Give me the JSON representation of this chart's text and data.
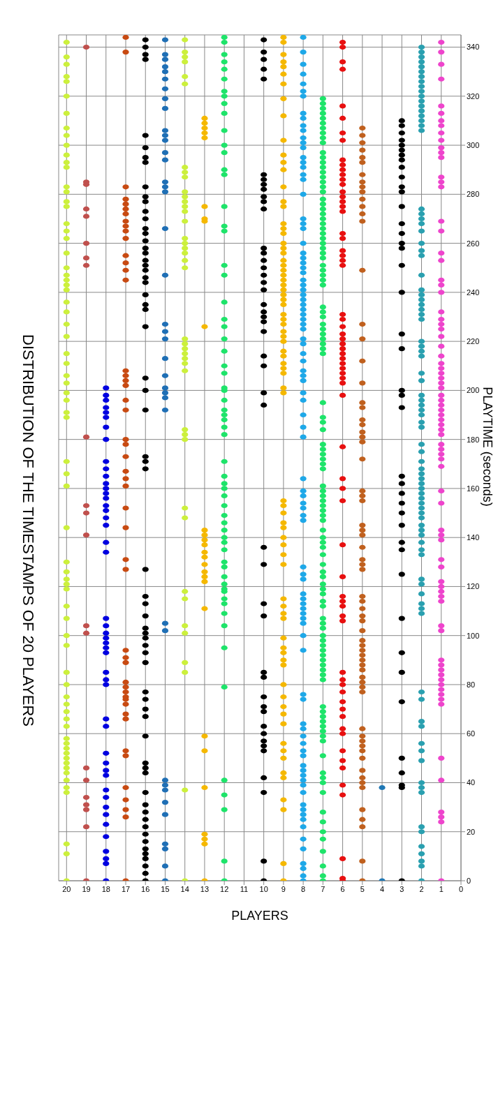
{
  "chart_data": {
    "type": "scatter",
    "title": "DISTRIBUTION OF THE TIMESTAMPS OF 20 PLAYERS",
    "xlabel": "PLAYERS",
    "ylabel": "PLAYTIME  (seconds)",
    "xlim": [
      20.4,
      0
    ],
    "ylim": [
      0,
      345
    ],
    "xticks": [
      0,
      1,
      2,
      3,
      4,
      5,
      6,
      7,
      8,
      9,
      10,
      11,
      12,
      13,
      14,
      15,
      16,
      17,
      18,
      19,
      20
    ],
    "yticks": [
      0,
      20,
      40,
      60,
      80,
      100,
      120,
      140,
      160,
      180,
      200,
      220,
      240,
      260,
      280,
      300,
      320,
      340
    ],
    "grid": true,
    "marker": "circle",
    "series": [
      {
        "color": "#ccf03c",
        "values": [
          0,
          11,
          15,
          36,
          38,
          41,
          44,
          46,
          48,
          50,
          52,
          54,
          56,
          58,
          63,
          66,
          69,
          72,
          75,
          80,
          85,
          96,
          100,
          107,
          112,
          119,
          121,
          123,
          126,
          130,
          144,
          161,
          166,
          171,
          189,
          191,
          196,
          199,
          203,
          206,
          211,
          215,
          222,
          227,
          232,
          236,
          241,
          243,
          245,
          247,
          250,
          256,
          262,
          265,
          268,
          275,
          277,
          281,
          283,
          291,
          293,
          296,
          300,
          304,
          307,
          313,
          320,
          326,
          328,
          333,
          336,
          342
        ],
        "x": [
          20,
          20,
          20,
          20,
          20,
          20,
          20,
          20,
          20,
          20,
          20,
          20,
          20,
          20,
          20,
          20,
          20,
          20,
          20,
          20,
          20,
          20,
          20,
          20,
          20,
          20,
          20,
          20,
          20,
          20,
          20,
          20,
          20,
          20,
          20,
          20,
          20,
          20,
          20,
          20,
          20,
          20,
          20,
          20,
          20,
          20,
          20,
          20,
          20,
          20,
          20,
          20,
          20,
          20,
          20,
          20,
          20,
          20,
          20,
          20,
          20,
          20,
          20,
          20,
          20,
          20,
          20,
          20,
          20,
          20,
          20,
          20
        ]
      },
      {
        "color": "#c0504d",
        "values": [
          0,
          22,
          29,
          31,
          34,
          41,
          46,
          101,
          104,
          141,
          150,
          153,
          181,
          251,
          254,
          260,
          271,
          274,
          284,
          285,
          340
        ],
        "x": [
          19,
          19,
          19,
          19,
          19,
          19,
          19,
          19,
          19,
          19,
          19,
          19,
          19,
          19,
          19,
          19,
          19,
          19,
          19,
          19,
          19
        ]
      },
      {
        "color": "#0000e0",
        "values": [
          0,
          7,
          9,
          12,
          18,
          23,
          27,
          30,
          34,
          37,
          43,
          45,
          48,
          52,
          63,
          66,
          80,
          82,
          85,
          93,
          95,
          97,
          99,
          101,
          104,
          107,
          134,
          138,
          145,
          148,
          151,
          153,
          156,
          158,
          160,
          162,
          165,
          168,
          171,
          180,
          185,
          189,
          191,
          193,
          196,
          198,
          201
        ],
        "x": [
          18,
          18,
          18,
          18,
          18,
          18,
          18,
          18,
          18,
          18,
          18,
          18,
          18,
          18,
          18,
          18,
          18,
          18,
          18,
          18,
          18,
          18,
          18,
          18,
          18,
          18,
          18,
          18,
          18,
          18,
          18,
          18,
          18,
          18,
          18,
          18,
          18,
          18,
          18,
          18,
          18,
          18,
          18,
          18,
          18,
          18,
          18
        ]
      },
      {
        "color": "#c84a12",
        "values": [
          0,
          26,
          29,
          33,
          38,
          51,
          53,
          66,
          68,
          72,
          74,
          75,
          77,
          79,
          81,
          89,
          91,
          94,
          127,
          131,
          144,
          152,
          161,
          164,
          167,
          173,
          178,
          180,
          192,
          196,
          202,
          204,
          206,
          208,
          245,
          249,
          252,
          255,
          262,
          265,
          267,
          269,
          272,
          274,
          276,
          278,
          283,
          338,
          344
        ],
        "x": [
          17,
          17,
          17,
          17,
          17,
          17,
          17,
          17,
          17,
          17,
          17,
          17,
          17,
          17,
          17,
          17,
          17,
          17,
          17,
          17,
          17,
          17,
          17,
          17,
          17,
          17,
          17,
          17,
          17,
          17,
          17,
          17,
          17,
          17,
          17,
          17,
          17,
          17,
          17,
          17,
          17,
          17,
          17,
          17,
          17,
          17,
          17,
          17,
          17
        ]
      },
      {
        "color": "#000000",
        "values": [
          0,
          3,
          6,
          9,
          11,
          13,
          16,
          19,
          22,
          25,
          28,
          31,
          36,
          44,
          46,
          48,
          59,
          67,
          70,
          74,
          77,
          89,
          93,
          96,
          99,
          101,
          103,
          108,
          113,
          116,
          127,
          168,
          171,
          173,
          192,
          200,
          205,
          226,
          233,
          235,
          239,
          244,
          246,
          249,
          251,
          253,
          256,
          258,
          261,
          264,
          266,
          270,
          273,
          277,
          279,
          283,
          293,
          295,
          299,
          304,
          335,
          337,
          340,
          343
        ],
        "x": [
          16,
          16,
          16,
          16,
          16,
          16,
          16,
          16,
          16,
          16,
          16,
          16,
          16,
          16,
          16,
          16,
          16,
          16,
          16,
          16,
          16,
          16,
          16,
          16,
          16,
          16,
          16,
          16,
          16,
          16,
          16,
          16,
          16,
          16,
          16,
          16,
          16,
          16,
          16,
          16,
          16,
          16,
          16,
          16,
          16,
          16,
          16,
          16,
          16,
          16,
          16,
          16,
          16,
          16,
          16,
          16,
          16,
          16,
          16,
          16,
          16,
          16,
          16,
          16
        ]
      },
      {
        "color": "#1f6fb5",
        "values": [
          0,
          6,
          13,
          15,
          27,
          32,
          37,
          39,
          41,
          102,
          105,
          192,
          197,
          199,
          201,
          206,
          213,
          221,
          224,
          227,
          247,
          266,
          281,
          283,
          285,
          294,
          297,
          302,
          304,
          306,
          315,
          319,
          323,
          327,
          330,
          332,
          335,
          337,
          343
        ],
        "x": [
          15,
          15,
          15,
          15,
          15,
          15,
          15,
          15,
          15,
          15,
          15,
          15,
          15,
          15,
          15,
          15,
          15,
          15,
          15,
          15,
          15,
          15,
          15,
          15,
          15,
          15,
          15,
          15,
          15,
          15,
          15,
          15,
          15,
          15,
          15,
          15,
          15,
          15,
          15
        ]
      },
      {
        "color": "#ccf03c",
        "values": [
          0,
          37,
          85,
          89,
          101,
          104,
          115,
          118,
          148,
          152,
          180,
          182,
          184,
          208,
          211,
          213,
          215,
          217,
          219,
          221,
          250,
          253,
          256,
          258,
          260,
          262,
          269,
          273,
          275,
          277,
          279,
          281,
          287,
          289,
          291,
          325,
          328,
          334,
          336,
          338,
          343
        ],
        "x": [
          14,
          14,
          14,
          14,
          14,
          14,
          14,
          14,
          14,
          14,
          14,
          14,
          14,
          14,
          14,
          14,
          14,
          14,
          14,
          14,
          14,
          14,
          14,
          14,
          14,
          14,
          14,
          14,
          14,
          14,
          14,
          14,
          14,
          14,
          14,
          14,
          14,
          14,
          14,
          14,
          14
        ]
      },
      {
        "color": "#f5b800",
        "values": [
          0,
          15,
          17,
          19,
          38,
          53,
          59,
          111,
          122,
          124,
          126,
          129,
          132,
          134,
          137,
          139,
          141,
          143,
          226,
          269,
          270,
          275,
          303,
          305,
          307,
          309,
          311
        ],
        "x": [
          13,
          13,
          13,
          13,
          13,
          13,
          13,
          13,
          13,
          13,
          13,
          13,
          13,
          13,
          13,
          13,
          13,
          13,
          13,
          13,
          13,
          13,
          13,
          13,
          13,
          13,
          13
        ]
      },
      {
        "color": "#1ee46a",
        "values": [
          0,
          8,
          29,
          35,
          41,
          79,
          95,
          104,
          109,
          113,
          115,
          118,
          119,
          121,
          124,
          128,
          130,
          135,
          138,
          140,
          143,
          146,
          149,
          153,
          157,
          160,
          162,
          165,
          171,
          182,
          185,
          188,
          190,
          192,
          196,
          200,
          201,
          207,
          210,
          216,
          221,
          226,
          229,
          236,
          247,
          251,
          265,
          267,
          275,
          288,
          290,
          297,
          300,
          306,
          313,
          317,
          320,
          322,
          327,
          331,
          334,
          337,
          342,
          344
        ],
        "x": [
          12,
          12,
          12,
          12,
          12,
          12,
          12,
          12,
          12,
          12,
          12,
          12,
          12,
          12,
          12,
          12,
          12,
          12,
          12,
          12,
          12,
          12,
          12,
          12,
          12,
          12,
          12,
          12,
          12,
          12,
          12,
          12,
          12,
          12,
          12,
          12,
          12,
          12,
          12,
          12,
          12,
          12,
          12,
          12,
          12,
          12,
          12,
          12,
          12,
          12,
          12,
          12,
          12,
          12,
          12,
          12,
          12,
          12,
          12,
          12,
          12,
          12,
          12,
          12
        ]
      },
      {
        "color": "#000000",
        "values": [
          0,
          8,
          36,
          42,
          53,
          55,
          57,
          60,
          63,
          69,
          71,
          75,
          83,
          85,
          108,
          113,
          129,
          136,
          194,
          199,
          210,
          214,
          224,
          228,
          230,
          232,
          235,
          241,
          244,
          247,
          250,
          253,
          256,
          258,
          274,
          277,
          279,
          282,
          284,
          286,
          288,
          327,
          331,
          335,
          338,
          343
        ],
        "x": [
          10,
          10,
          10,
          10,
          10,
          10,
          10,
          10,
          10,
          10,
          10,
          10,
          10,
          10,
          10,
          10,
          10,
          10,
          10,
          10,
          10,
          10,
          10,
          10,
          10,
          10,
          10,
          10,
          10,
          10,
          10,
          10,
          10,
          10,
          10,
          10,
          10,
          10,
          10,
          10,
          10,
          10,
          10,
          10,
          10,
          10
        ]
      },
      {
        "color": "#f5b800",
        "values": [
          0,
          7,
          29,
          33,
          42,
          44,
          50,
          53,
          56,
          64,
          68,
          71,
          75,
          80,
          88,
          90,
          93,
          95,
          99,
          107,
          109,
          112,
          115,
          129,
          133,
          137,
          140,
          144,
          146,
          150,
          153,
          155,
          199,
          201,
          207,
          209,
          211,
          214,
          216,
          220,
          222,
          224,
          227,
          229,
          231,
          235,
          237,
          239,
          241,
          243,
          245,
          247,
          249,
          251,
          253,
          256,
          258,
          260,
          264,
          266,
          268,
          275,
          277,
          283,
          290,
          293,
          296,
          302,
          312,
          319,
          325,
          329,
          332,
          334,
          337,
          342,
          344
        ],
        "x": [
          9,
          9,
          9,
          9,
          9,
          9,
          9,
          9,
          9,
          9,
          9,
          9,
          9,
          9,
          9,
          9,
          9,
          9,
          9,
          9,
          9,
          9,
          9,
          9,
          9,
          9,
          9,
          9,
          9,
          9,
          9,
          9,
          9,
          9,
          9,
          9,
          9,
          9,
          9,
          9,
          9,
          9,
          9,
          9,
          9,
          9,
          9,
          9,
          9,
          9,
          9,
          9,
          9,
          9,
          9,
          9,
          9,
          9,
          9,
          9,
          9,
          9,
          9,
          9,
          9,
          9,
          9,
          9,
          9,
          9,
          9,
          9,
          9,
          9,
          9,
          9,
          9
        ]
      },
      {
        "color": "#1ea8e8",
        "values": [
          0,
          2,
          5,
          7,
          13,
          17,
          22,
          25,
          27,
          29,
          31,
          36,
          39,
          41,
          43,
          45,
          47,
          51,
          53,
          56,
          59,
          62,
          64,
          74,
          76,
          94,
          100,
          105,
          107,
          109,
          111,
          113,
          115,
          117,
          123,
          125,
          128,
          147,
          149,
          152,
          154,
          157,
          159,
          164,
          181,
          185,
          190,
          196,
          199,
          204,
          206,
          208,
          212,
          215,
          219,
          221,
          225,
          227,
          229,
          231,
          233,
          235,
          237,
          239,
          241,
          243,
          245,
          248,
          250,
          252,
          254,
          256,
          260,
          266,
          268,
          270,
          280,
          286,
          288,
          291,
          293,
          295,
          299,
          301,
          303,
          306,
          308,
          311,
          313,
          320,
          322,
          325,
          329,
          333,
          338,
          344
        ],
        "x": [
          8,
          8,
          8,
          8,
          8,
          8,
          8,
          8,
          8,
          8,
          8,
          8,
          8,
          8,
          8,
          8,
          8,
          8,
          8,
          8,
          8,
          8,
          8,
          8,
          8,
          8,
          8,
          8,
          8,
          8,
          8,
          8,
          8,
          8,
          8,
          8,
          8,
          8,
          8,
          8,
          8,
          8,
          8,
          8,
          8,
          8,
          8,
          8,
          8,
          8,
          8,
          8,
          8,
          8,
          8,
          8,
          8,
          8,
          8,
          8,
          8,
          8,
          8,
          8,
          8,
          8,
          8,
          8,
          8,
          8,
          8,
          8,
          8,
          8,
          8,
          8,
          8,
          8,
          8,
          8,
          8,
          8,
          8,
          8,
          8,
          8,
          8,
          8,
          8,
          8,
          8,
          8,
          8,
          8,
          8,
          8
        ]
      },
      {
        "color": "#1ee46a",
        "values": [
          0,
          2,
          6,
          12,
          17,
          20,
          24,
          28,
          36,
          40,
          42,
          44,
          51,
          57,
          59,
          61,
          63,
          65,
          67,
          69,
          71,
          82,
          84,
          86,
          88,
          90,
          92,
          94,
          96,
          98,
          100,
          103,
          105,
          107,
          112,
          114,
          117,
          119,
          121,
          124,
          126,
          129,
          133,
          136,
          138,
          140,
          143,
          147,
          149,
          151,
          153,
          155,
          157,
          159,
          161,
          168,
          170,
          172,
          174,
          176,
          178,
          184,
          187,
          189,
          195,
          215,
          217,
          219,
          221,
          223,
          225,
          227,
          230,
          232,
          234,
          243,
          245,
          247,
          249,
          251,
          254,
          256,
          258,
          260,
          262,
          264,
          266,
          268,
          270,
          272,
          274,
          276,
          278,
          281,
          283,
          285,
          287,
          289,
          291,
          293,
          295,
          297,
          301,
          303,
          305,
          307,
          309,
          311,
          313,
          315,
          317,
          319
        ],
        "x": [
          7,
          7,
          7,
          7,
          7,
          7,
          7,
          7,
          7,
          7,
          7,
          7,
          7,
          7,
          7,
          7,
          7,
          7,
          7,
          7,
          7,
          7,
          7,
          7,
          7,
          7,
          7,
          7,
          7,
          7,
          7,
          7,
          7,
          7,
          7,
          7,
          7,
          7,
          7,
          7,
          7,
          7,
          7,
          7,
          7,
          7,
          7,
          7,
          7,
          7,
          7,
          7,
          7,
          7,
          7,
          7,
          7,
          7,
          7,
          7,
          7,
          7,
          7,
          7,
          7,
          7,
          7,
          7,
          7,
          7,
          7,
          7,
          7,
          7,
          7,
          7,
          7,
          7,
          7,
          7,
          7,
          7,
          7,
          7,
          7,
          7,
          7,
          7,
          7,
          7,
          7,
          7,
          7,
          7,
          7,
          7,
          7,
          7,
          7,
          7,
          7,
          7,
          7,
          7,
          7,
          7,
          7,
          7,
          7,
          7,
          7,
          7
        ]
      },
      {
        "color": "#e81010",
        "values": [
          0,
          1,
          9,
          35,
          39,
          46,
          49,
          53,
          60,
          62,
          67,
          70,
          73,
          77,
          80,
          82,
          85,
          106,
          108,
          112,
          114,
          116,
          124,
          137,
          155,
          160,
          164,
          177,
          198,
          203,
          205,
          207,
          209,
          211,
          213,
          215,
          217,
          219,
          221,
          223,
          226,
          229,
          231,
          251,
          253,
          255,
          257,
          262,
          264,
          273,
          275,
          277,
          279,
          281,
          284,
          286,
          288,
          290,
          292,
          294,
          302,
          305,
          311,
          316,
          331,
          334,
          340,
          342
        ],
        "x": [
          6,
          6,
          6,
          6,
          6,
          6,
          6,
          6,
          6,
          6,
          6,
          6,
          6,
          6,
          6,
          6,
          6,
          6,
          6,
          6,
          6,
          6,
          6,
          6,
          6,
          6,
          6,
          6,
          6,
          6,
          6,
          6,
          6,
          6,
          6,
          6,
          6,
          6,
          6,
          6,
          6,
          6,
          6,
          6,
          6,
          6,
          6,
          6,
          6,
          6,
          6,
          6,
          6,
          6,
          6,
          6,
          6,
          6,
          6,
          6,
          6,
          6,
          6,
          6,
          6,
          6,
          6,
          6
        ]
      },
      {
        "color": "#c0601e",
        "values": [
          0,
          8,
          22,
          25,
          29,
          38,
          40,
          42,
          45,
          50,
          53,
          55,
          57,
          59,
          62,
          77,
          79,
          81,
          83,
          86,
          88,
          90,
          92,
          94,
          96,
          98,
          102,
          106,
          108,
          111,
          114,
          116,
          127,
          129,
          131,
          136,
          141,
          143,
          145,
          155,
          157,
          159,
          172,
          179,
          181,
          183,
          186,
          188,
          193,
          195,
          203,
          212,
          221,
          227,
          249,
          269,
          272,
          275,
          278,
          281,
          283,
          285,
          288,
          293,
          295,
          298,
          301,
          304,
          307
        ],
        "x": [
          5,
          5,
          5,
          5,
          5,
          5,
          5,
          5,
          5,
          5,
          5,
          5,
          5,
          5,
          5,
          5,
          5,
          5,
          5,
          5,
          5,
          5,
          5,
          5,
          5,
          5,
          5,
          5,
          5,
          5,
          5,
          5,
          5,
          5,
          5,
          5,
          5,
          5,
          5,
          5,
          5,
          5,
          5,
          5,
          5,
          5,
          5,
          5,
          5,
          5,
          5,
          5,
          5,
          5,
          5,
          5,
          5,
          5,
          5,
          5,
          5,
          5,
          5,
          5,
          5,
          5,
          5,
          5,
          5
        ]
      },
      {
        "color": "#1f77b4",
        "values": [
          0,
          38
        ],
        "x": [
          4,
          4
        ]
      },
      {
        "color": "#000000",
        "values": [
          0,
          38,
          39,
          44,
          50,
          73,
          85,
          93,
          107,
          125,
          135,
          138,
          145,
          150,
          154,
          158,
          162,
          165,
          193,
          198,
          200,
          217,
          223,
          240,
          251,
          258,
          260,
          264,
          268,
          275,
          281,
          283,
          287,
          291,
          294,
          296,
          298,
          300,
          302,
          305,
          308,
          310
        ],
        "x": [
          3,
          3,
          3,
          3,
          3,
          3,
          3,
          3,
          3,
          3,
          3,
          3,
          3,
          3,
          3,
          3,
          3,
          3,
          3,
          3,
          3,
          3,
          3,
          3,
          3,
          3,
          3,
          3,
          3,
          3,
          3,
          3,
          3,
          3,
          3,
          3,
          3,
          3,
          3,
          3,
          3,
          3
        ]
      },
      {
        "color": "#2aa0b0",
        "values": [
          0,
          6,
          8,
          11,
          14,
          20,
          22,
          36,
          38,
          40,
          49,
          53,
          56,
          63,
          65,
          74,
          77,
          109,
          111,
          113,
          117,
          121,
          123,
          133,
          135,
          138,
          141,
          143,
          145,
          148,
          150,
          152,
          154,
          156,
          158,
          160,
          162,
          164,
          166,
          168,
          171,
          175,
          178,
          185,
          187,
          190,
          192,
          194,
          196,
          198,
          204,
          207,
          214,
          216,
          218,
          220,
          229,
          231,
          233,
          235,
          237,
          239,
          241,
          247,
          255,
          257,
          260,
          265,
          268,
          270,
          272,
          274,
          306,
          308,
          310,
          312,
          314,
          316,
          318,
          320,
          322,
          324,
          326,
          328,
          330,
          332,
          334,
          336,
          338,
          340
        ],
        "x": [
          2,
          2,
          2,
          2,
          2,
          2,
          2,
          2,
          2,
          2,
          2,
          2,
          2,
          2,
          2,
          2,
          2,
          2,
          2,
          2,
          2,
          2,
          2,
          2,
          2,
          2,
          2,
          2,
          2,
          2,
          2,
          2,
          2,
          2,
          2,
          2,
          2,
          2,
          2,
          2,
          2,
          2,
          2,
          2,
          2,
          2,
          2,
          2,
          2,
          2,
          2,
          2,
          2,
          2,
          2,
          2,
          2,
          2,
          2,
          2,
          2,
          2,
          2,
          2,
          2,
          2,
          2,
          2,
          2,
          2,
          2,
          2,
          2,
          2,
          2,
          2,
          2,
          2,
          2,
          2,
          2,
          2,
          2,
          2,
          2,
          2,
          2,
          2,
          2,
          2
        ]
      },
      {
        "color": "#ee44cc",
        "values": [
          0,
          24,
          26,
          28,
          41,
          50,
          72,
          74,
          76,
          78,
          80,
          82,
          84,
          86,
          88,
          90,
          102,
          104,
          114,
          116,
          118,
          120,
          122,
          128,
          131,
          139,
          141,
          143,
          154,
          159,
          169,
          172,
          174,
          176,
          178,
          182,
          184,
          186,
          188,
          190,
          192,
          194,
          196,
          198,
          201,
          203,
          205,
          207,
          209,
          211,
          214,
          218,
          222,
          225,
          227,
          229,
          232,
          240,
          243,
          245,
          253,
          256,
          265,
          269,
          283,
          285,
          287,
          295,
          297,
          299,
          302,
          305,
          308,
          310,
          313,
          316,
          327,
          333,
          338,
          342
        ],
        "x": [
          1,
          1,
          1,
          1,
          1,
          1,
          1,
          1,
          1,
          1,
          1,
          1,
          1,
          1,
          1,
          1,
          1,
          1,
          1,
          1,
          1,
          1,
          1,
          1,
          1,
          1,
          1,
          1,
          1,
          1,
          1,
          1,
          1,
          1,
          1,
          1,
          1,
          1,
          1,
          1,
          1,
          1,
          1,
          1,
          1,
          1,
          1,
          1,
          1,
          1,
          1,
          1,
          1,
          1,
          1,
          1,
          1,
          1,
          1,
          1,
          1,
          1,
          1,
          1,
          1,
          1,
          1,
          1,
          1,
          1,
          1,
          1,
          1,
          1,
          1,
          1,
          1,
          1,
          1,
          1
        ]
      }
    ]
  }
}
